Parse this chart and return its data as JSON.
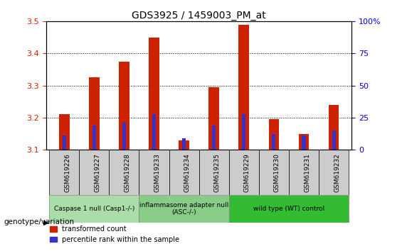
{
  "title": "GDS3925 / 1459003_PM_at",
  "samples": [
    "GSM619226",
    "GSM619227",
    "GSM619228",
    "GSM619233",
    "GSM619234",
    "GSM619235",
    "GSM619229",
    "GSM619230",
    "GSM619231",
    "GSM619232"
  ],
  "red_values": [
    3.21,
    3.325,
    3.375,
    3.45,
    3.13,
    3.295,
    3.49,
    3.195,
    3.15,
    3.24
  ],
  "blue_values": [
    3.145,
    3.175,
    3.185,
    3.21,
    3.135,
    3.175,
    3.21,
    3.15,
    3.145,
    3.16
  ],
  "ylim": [
    3.1,
    3.5
  ],
  "yticks": [
    3.1,
    3.2,
    3.3,
    3.4,
    3.5
  ],
  "right_yticks": [
    0,
    25,
    50,
    75,
    100
  ],
  "right_ylim": [
    0,
    100
  ],
  "bar_color_red": "#cc2200",
  "bar_color_blue": "#3333cc",
  "groups": [
    {
      "label": "Caspase 1 null (Casp1-/-)",
      "start": 0,
      "end": 3,
      "color": "#aaddaa"
    },
    {
      "label": "inflammasome adapter null\n(ASC-/-)",
      "start": 3,
      "end": 6,
      "color": "#88cc88"
    },
    {
      "label": "wild type (WT) control",
      "start": 6,
      "end": 10,
      "color": "#33bb33"
    }
  ],
  "right_axis_color": "#0000cc",
  "tick_label_color_left": "#cc2200",
  "tick_label_color_right": "#0000cc",
  "legend_red": "transformed count",
  "legend_blue": "percentile rank within the sample",
  "genotype_label": "genotype/variation",
  "background_color": "#ffffff",
  "bar_width": 0.35,
  "blue_bar_width": 0.12,
  "base": 3.1,
  "plot_bg": "#ffffff",
  "xticklabel_bg": "#cccccc"
}
